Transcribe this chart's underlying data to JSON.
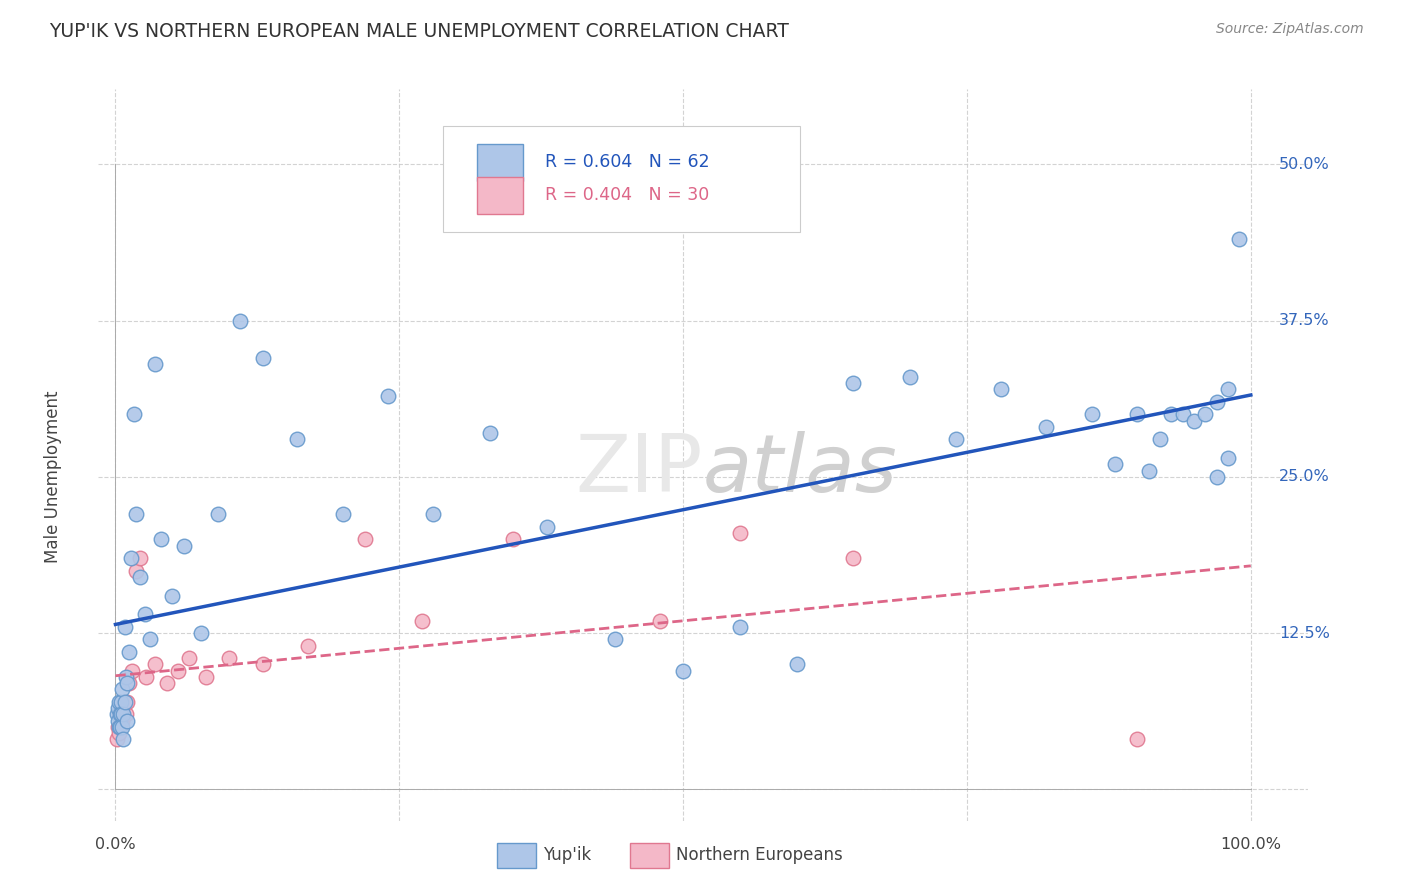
{
  "title": "YUP'IK VS NORTHERN EUROPEAN MALE UNEMPLOYMENT CORRELATION CHART",
  "source": "Source: ZipAtlas.com",
  "ylabel": "Male Unemployment",
  "background_color": "#ffffff",
  "grid_color": "#c8c8c8",
  "watermark": "ZIPatlas",
  "yupik_color": "#aec6e8",
  "yupik_edge_color": "#6699cc",
  "northern_color": "#f4b8c8",
  "northern_edge_color": "#e07890",
  "yupik_line_color": "#2255bb",
  "northern_line_color": "#dd6688",
  "legend_yupik": "R = 0.604   N = 62",
  "legend_northern": "R = 0.404   N = 30",
  "yupik_x": [
    0.001,
    0.002,
    0.002,
    0.003,
    0.003,
    0.004,
    0.004,
    0.005,
    0.005,
    0.006,
    0.006,
    0.007,
    0.007,
    0.008,
    0.008,
    0.009,
    0.01,
    0.01,
    0.012,
    0.014,
    0.016,
    0.018,
    0.022,
    0.026,
    0.03,
    0.035,
    0.04,
    0.05,
    0.06,
    0.075,
    0.09,
    0.11,
    0.13,
    0.16,
    0.2,
    0.24,
    0.28,
    0.33,
    0.38,
    0.44,
    0.5,
    0.55,
    0.6,
    0.65,
    0.7,
    0.74,
    0.78,
    0.82,
    0.86,
    0.88,
    0.9,
    0.91,
    0.92,
    0.93,
    0.94,
    0.95,
    0.96,
    0.97,
    0.97,
    0.98,
    0.98,
    0.99
  ],
  "yupik_y": [
    0.06,
    0.055,
    0.065,
    0.05,
    0.07,
    0.06,
    0.05,
    0.07,
    0.06,
    0.05,
    0.08,
    0.06,
    0.04,
    0.07,
    0.13,
    0.09,
    0.055,
    0.085,
    0.11,
    0.185,
    0.3,
    0.22,
    0.17,
    0.14,
    0.12,
    0.34,
    0.2,
    0.155,
    0.195,
    0.125,
    0.22,
    0.375,
    0.345,
    0.28,
    0.22,
    0.315,
    0.22,
    0.285,
    0.21,
    0.12,
    0.095,
    0.13,
    0.1,
    0.325,
    0.33,
    0.28,
    0.32,
    0.29,
    0.3,
    0.26,
    0.3,
    0.255,
    0.28,
    0.3,
    0.3,
    0.295,
    0.3,
    0.25,
    0.31,
    0.265,
    0.32,
    0.44
  ],
  "northern_x": [
    0.001,
    0.002,
    0.003,
    0.004,
    0.005,
    0.006,
    0.007,
    0.008,
    0.009,
    0.01,
    0.012,
    0.015,
    0.018,
    0.022,
    0.027,
    0.035,
    0.045,
    0.055,
    0.065,
    0.08,
    0.1,
    0.13,
    0.17,
    0.22,
    0.27,
    0.35,
    0.48,
    0.55,
    0.65,
    0.9
  ],
  "northern_y": [
    0.04,
    0.05,
    0.045,
    0.06,
    0.065,
    0.055,
    0.06,
    0.07,
    0.06,
    0.07,
    0.085,
    0.095,
    0.175,
    0.185,
    0.09,
    0.1,
    0.085,
    0.095,
    0.105,
    0.09,
    0.105,
    0.1,
    0.115,
    0.2,
    0.135,
    0.2,
    0.135,
    0.205,
    0.185,
    0.04
  ],
  "xlim": [
    -0.015,
    1.05
  ],
  "ylim": [
    -0.025,
    0.56
  ],
  "ytick_positions": [
    0.0,
    0.125,
    0.25,
    0.375,
    0.5
  ],
  "ytick_labels": [
    "",
    "12.5%",
    "25.0%",
    "37.5%",
    "50.0%"
  ],
  "xtick_positions": [
    0.0,
    0.25,
    0.5,
    0.75,
    1.0
  ],
  "xtick_labels": [
    "0.0%",
    "",
    "",
    "",
    "100.0%"
  ]
}
